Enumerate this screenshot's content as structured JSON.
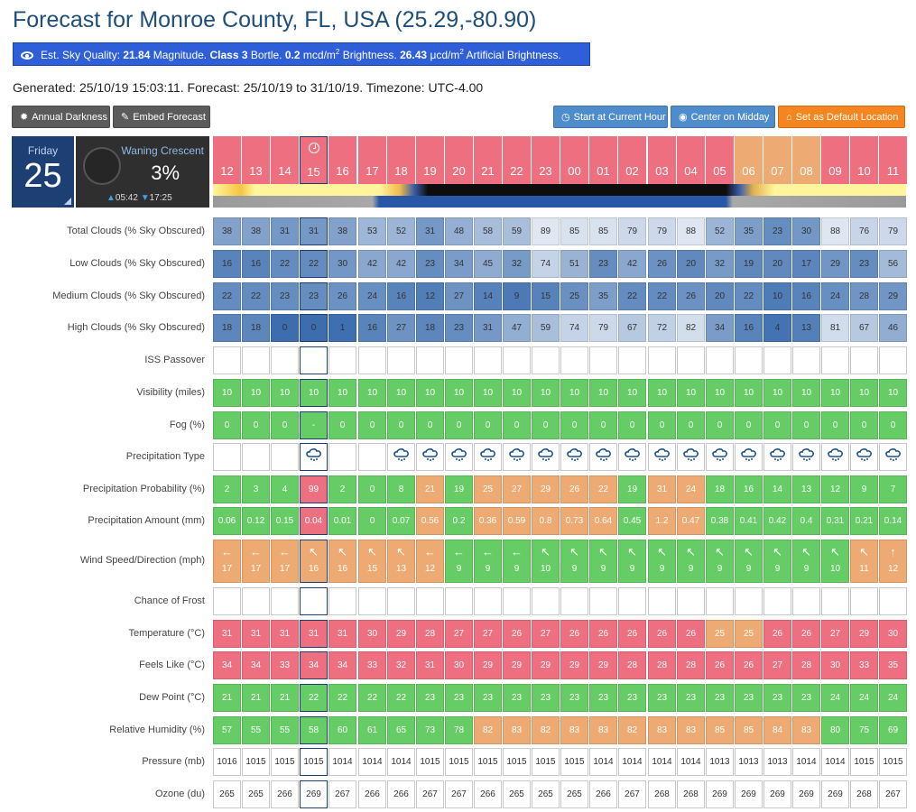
{
  "page": {
    "title": "Forecast for Monroe County, FL, USA (25.29,-80.90)",
    "sky_quality": {
      "prefix": "Est. Sky Quality:",
      "magnitude_value": "21.84",
      "magnitude_label": "Magnitude.",
      "class_value": "Class 3",
      "class_label": "Bortle.",
      "brightness_value": "0.2",
      "brightness_unit": "mcd/m",
      "brightness_label": "Brightness.",
      "artificial_value": "26.43",
      "artificial_unit": "μcd/m",
      "artificial_label": "Artificial Brightness.",
      "sup": "2"
    },
    "generated": "Generated: 25/10/19 15:03:11. Forecast: 25/10/19 to 31/10/19. Timezone: UTC-4.00"
  },
  "buttons": {
    "annual_darkness": "Annual Darkness",
    "embed_forecast": "Embed Forecast",
    "start_current_hour": "Start at Current Hour",
    "center_midday": "Center on Midday",
    "set_default": "Set as Default Location"
  },
  "day_card": {
    "weekday": "Friday",
    "day": "25"
  },
  "moon_card": {
    "phase": "Waning Crescent",
    "illumination": "3%",
    "rise": "05:42",
    "set": "17:25"
  },
  "colors": {
    "red": "#ee6f7f",
    "orange": "#eeaa73",
    "green": "#66cc66",
    "white": "#ffffff",
    "dark_blue": "#1d3f73"
  },
  "hours": {
    "labels": [
      "12",
      "13",
      "14",
      "15",
      "16",
      "17",
      "18",
      "19",
      "20",
      "21",
      "22",
      "23",
      "00",
      "01",
      "02",
      "03",
      "04",
      "05",
      "06",
      "07",
      "08",
      "09",
      "10",
      "11"
    ],
    "colors": [
      "r",
      "r",
      "r",
      "r",
      "r",
      "r",
      "r",
      "r",
      "r",
      "r",
      "r",
      "r",
      "r",
      "r",
      "r",
      "r",
      "r",
      "r",
      "o",
      "o",
      "o",
      "r",
      "r",
      "r"
    ],
    "current_index": 3
  },
  "rows": [
    {
      "label": "Total Clouds (% Sky Obscured)",
      "kind": "cloud",
      "values": [
        "38",
        "38",
        "31",
        "31",
        "38",
        "53",
        "52",
        "31",
        "48",
        "58",
        "59",
        "89",
        "85",
        "85",
        "79",
        "79",
        "88",
        "52",
        "35",
        "23",
        "30",
        "88",
        "76",
        "79"
      ]
    },
    {
      "label": "Low Clouds (% Sky Obscured)",
      "kind": "cloud",
      "values": [
        "16",
        "16",
        "22",
        "22",
        "30",
        "42",
        "42",
        "23",
        "34",
        "45",
        "32",
        "74",
        "51",
        "23",
        "42",
        "26",
        "20",
        "32",
        "19",
        "20",
        "17",
        "29",
        "23",
        "56"
      ]
    },
    {
      "label": "Medium Clouds (% Sky Obscured)",
      "kind": "cloud",
      "values": [
        "22",
        "22",
        "23",
        "23",
        "26",
        "24",
        "16",
        "12",
        "27",
        "14",
        "9",
        "15",
        "25",
        "35",
        "22",
        "22",
        "26",
        "20",
        "22",
        "10",
        "16",
        "24",
        "28",
        "29"
      ]
    },
    {
      "label": "High Clouds (% Sky Obscured)",
      "kind": "cloud",
      "values": [
        "18",
        "18",
        "0",
        "0",
        "1",
        "16",
        "27",
        "18",
        "23",
        "31",
        "47",
        "59",
        "74",
        "79",
        "67",
        "72",
        "82",
        "34",
        "16",
        "4",
        "13",
        "81",
        "67",
        "46"
      ]
    },
    {
      "label": "ISS Passover",
      "kind": "blank",
      "values": []
    },
    {
      "label": "Visibility (miles)",
      "kind": "green",
      "values": [
        "10",
        "10",
        "10",
        "10",
        "10",
        "10",
        "10",
        "10",
        "10",
        "10",
        "10",
        "10",
        "10",
        "10",
        "10",
        "10",
        "10",
        "10",
        "10",
        "10",
        "10",
        "10",
        "10",
        "10"
      ]
    },
    {
      "label": "Fog (%)",
      "kind": "green",
      "values": [
        "0",
        "0",
        "0",
        "-",
        "0",
        "0",
        "0",
        "0",
        "0",
        "0",
        "0",
        "0",
        "0",
        "0",
        "0",
        "0",
        "0",
        "0",
        "0",
        "0",
        "0",
        "0",
        "0",
        "0"
      ]
    },
    {
      "label": "Precipitation Type",
      "kind": "precip",
      "values": [
        0,
        0,
        0,
        1,
        0,
        0,
        1,
        1,
        1,
        1,
        1,
        1,
        1,
        1,
        1,
        1,
        1,
        1,
        1,
        1,
        1,
        1,
        1,
        1
      ]
    },
    {
      "label": "Precipitation Probability (%)",
      "kind": "scored",
      "values": [
        "2",
        "3",
        "4",
        "99",
        "2",
        "0",
        "8",
        "21",
        "19",
        "25",
        "27",
        "29",
        "26",
        "22",
        "19",
        "31",
        "24",
        "18",
        "16",
        "14",
        "13",
        "12",
        "9",
        "7"
      ],
      "colors": [
        "g",
        "g",
        "g",
        "r",
        "g",
        "g",
        "g",
        "o",
        "g",
        "o",
        "o",
        "o",
        "o",
        "o",
        "g",
        "o",
        "o",
        "g",
        "g",
        "g",
        "g",
        "g",
        "g",
        "g"
      ]
    },
    {
      "label": "Precipitation Amount (mm)",
      "kind": "scored",
      "values": [
        "0.06",
        "0.12",
        "0.15",
        "0.04",
        "0.01",
        "0",
        "0.07",
        "0.56",
        "0.2",
        "0.36",
        "0.59",
        "0.8",
        "0.73",
        "0.64",
        "0.45",
        "1.2",
        "0.47",
        "0.38",
        "0.41",
        "0.42",
        "0.4",
        "0.31",
        "0.21",
        "0.14"
      ],
      "colors": [
        "g",
        "g",
        "g",
        "r",
        "g",
        "g",
        "g",
        "o",
        "g",
        "o",
        "o",
        "o",
        "o",
        "o",
        "g",
        "o",
        "o",
        "g",
        "g",
        "g",
        "g",
        "g",
        "g",
        "g"
      ]
    },
    {
      "label": "Wind Speed/Direction (mph)",
      "kind": "wind",
      "values": [
        "17",
        "17",
        "17",
        "16",
        "16",
        "15",
        "13",
        "12",
        "9",
        "9",
        "9",
        "10",
        "9",
        "9",
        "9",
        "9",
        "9",
        "9",
        "9",
        "9",
        "9",
        "10",
        "11",
        "12"
      ],
      "arrows": [
        "←",
        "←",
        "←",
        "↖",
        "↖",
        "↖",
        "↖",
        "←",
        "←",
        "←",
        "←",
        "↖",
        "↖",
        "↖",
        "↖",
        "↖",
        "↖",
        "↖",
        "↖",
        "↖",
        "↖",
        "↖",
        "↖",
        "↑"
      ],
      "colors": [
        "o",
        "o",
        "o",
        "o",
        "o",
        "o",
        "o",
        "o",
        "g",
        "g",
        "g",
        "g",
        "g",
        "g",
        "g",
        "g",
        "g",
        "g",
        "g",
        "g",
        "g",
        "g",
        "o",
        "o"
      ]
    },
    {
      "label": "Chance of Frost",
      "kind": "blank",
      "values": []
    },
    {
      "label": "Temperature (°C)",
      "kind": "scored",
      "values": [
        "31",
        "31",
        "31",
        "31",
        "31",
        "30",
        "29",
        "28",
        "27",
        "27",
        "26",
        "27",
        "26",
        "26",
        "26",
        "26",
        "26",
        "25",
        "25",
        "26",
        "26",
        "27",
        "29",
        "30"
      ],
      "colors": [
        "r",
        "r",
        "r",
        "r",
        "r",
        "r",
        "r",
        "r",
        "r",
        "r",
        "r",
        "r",
        "r",
        "r",
        "r",
        "r",
        "r",
        "o",
        "o",
        "r",
        "r",
        "r",
        "r",
        "r"
      ]
    },
    {
      "label": "Feels Like (°C)",
      "kind": "scored",
      "values": [
        "34",
        "34",
        "33",
        "34",
        "34",
        "33",
        "32",
        "31",
        "30",
        "29",
        "29",
        "29",
        "29",
        "29",
        "28",
        "28",
        "28",
        "26",
        "26",
        "27",
        "28",
        "30",
        "33",
        "35"
      ],
      "colors": [
        "r",
        "r",
        "r",
        "r",
        "r",
        "r",
        "r",
        "r",
        "r",
        "r",
        "r",
        "r",
        "r",
        "r",
        "r",
        "r",
        "r",
        "r",
        "r",
        "r",
        "r",
        "r",
        "r",
        "r"
      ]
    },
    {
      "label": "Dew Point (°C)",
      "kind": "green",
      "values": [
        "21",
        "21",
        "21",
        "22",
        "22",
        "22",
        "22",
        "23",
        "23",
        "23",
        "23",
        "23",
        "23",
        "23",
        "23",
        "23",
        "23",
        "23",
        "23",
        "23",
        "23",
        "24",
        "24",
        "24"
      ]
    },
    {
      "label": "Relative Humidity (%)",
      "kind": "scored",
      "values": [
        "57",
        "55",
        "55",
        "58",
        "60",
        "61",
        "65",
        "73",
        "78",
        "82",
        "83",
        "82",
        "83",
        "83",
        "82",
        "83",
        "83",
        "85",
        "85",
        "84",
        "83",
        "80",
        "75",
        "69"
      ],
      "colors": [
        "g",
        "g",
        "g",
        "g",
        "g",
        "g",
        "g",
        "g",
        "g",
        "o",
        "o",
        "o",
        "o",
        "o",
        "o",
        "o",
        "o",
        "o",
        "o",
        "o",
        "o",
        "g",
        "g",
        "g"
      ]
    },
    {
      "label": "Pressure (mb)",
      "kind": "white",
      "values": [
        "1016",
        "1015",
        "1015",
        "1015",
        "1014",
        "1014",
        "1014",
        "1015",
        "1015",
        "1015",
        "1015",
        "1015",
        "1015",
        "1014",
        "1014",
        "1014",
        "1014",
        "1013",
        "1013",
        "1013",
        "1014",
        "1014",
        "1015",
        "1015"
      ]
    },
    {
      "label": "Ozone (du)",
      "kind": "white",
      "values": [
        "265",
        "265",
        "266",
        "269",
        "267",
        "266",
        "266",
        "267",
        "267",
        "266",
        "265",
        "265",
        "265",
        "266",
        "267",
        "268",
        "268",
        "269",
        "269",
        "269",
        "269",
        "269",
        "268",
        "267"
      ]
    }
  ]
}
